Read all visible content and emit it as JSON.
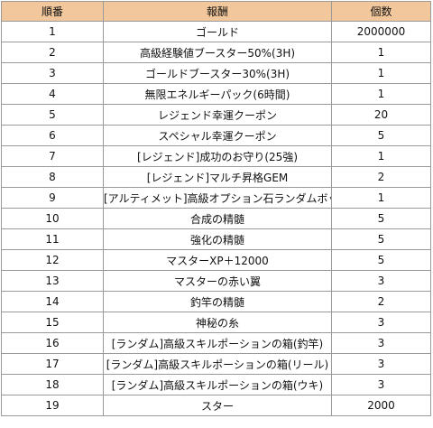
{
  "table": {
    "headers": [
      "順番",
      "報酬",
      "個数"
    ],
    "rows": [
      [
        "1",
        "ゴールド",
        "2000000"
      ],
      [
        "2",
        "高級経験値ブースター50%(3H)",
        "1"
      ],
      [
        "3",
        "ゴールドブースター30%(3H)",
        "1"
      ],
      [
        "4",
        "無限エネルギーパック(6時間)",
        "1"
      ],
      [
        "5",
        "レジェンド幸運クーポン",
        "20"
      ],
      [
        "6",
        "スペシャル幸運クーポン",
        "5"
      ],
      [
        "7",
        "[レジェンド]成功のお守り(25強)",
        "1"
      ],
      [
        "8",
        "[レジェンド]マルチ昇格GEM",
        "2"
      ],
      [
        "9",
        "[アルティメット]高級オプション石ランダムボックス",
        "1"
      ],
      [
        "10",
        "合成の精髄",
        "5"
      ],
      [
        "11",
        "強化の精髄",
        "5"
      ],
      [
        "12",
        "マスターXP＋12000",
        "5"
      ],
      [
        "13",
        "マスターの赤い翼",
        "3"
      ],
      [
        "14",
        "釣竿の精髄",
        "2"
      ],
      [
        "15",
        "神秘の糸",
        "3"
      ],
      [
        "16",
        "[ランダム]高級スキルポーションの箱(釣竿)",
        "3"
      ],
      [
        "17",
        "[ランダム]高級スキルポーションの箱(リール)",
        "3"
      ],
      [
        "18",
        "[ランダム]高級スキルポーションの箱(ウキ)",
        "3"
      ],
      [
        "19",
        "スター",
        "2000"
      ]
    ]
  },
  "colors": {
    "header_bg": "#f2c79b",
    "border": "#9a9a9a",
    "text": "#111111"
  }
}
